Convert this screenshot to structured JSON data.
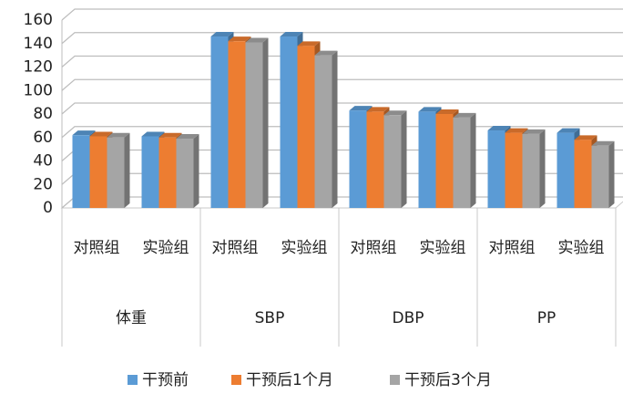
{
  "chart_data": {
    "type": "bar",
    "categories": [
      "对照组",
      "实验组",
      "对照组",
      "实验组",
      "对照组",
      "实验组",
      "对照组",
      "实验组"
    ],
    "groups": [
      "体重",
      "SBP",
      "DBP",
      "PP"
    ],
    "series": [
      {
        "name": "干预前",
        "color": "#5b9bd5",
        "values": [
          62,
          61,
          146,
          146,
          83,
          82,
          66,
          64
        ]
      },
      {
        "name": "干预后1个月",
        "color": "#ed7d31",
        "values": [
          61,
          60,
          142,
          138,
          82,
          80,
          64,
          58
        ]
      },
      {
        "name": "干预后3个月",
        "color": "#a5a5a5",
        "values": [
          60,
          59,
          141,
          130,
          79,
          77,
          63,
          53
        ]
      }
    ],
    "ylim": [
      0,
      160
    ],
    "yticks": [
      0,
      20,
      40,
      60,
      80,
      100,
      120,
      140,
      160
    ],
    "grid": true,
    "legend": "bottom"
  }
}
